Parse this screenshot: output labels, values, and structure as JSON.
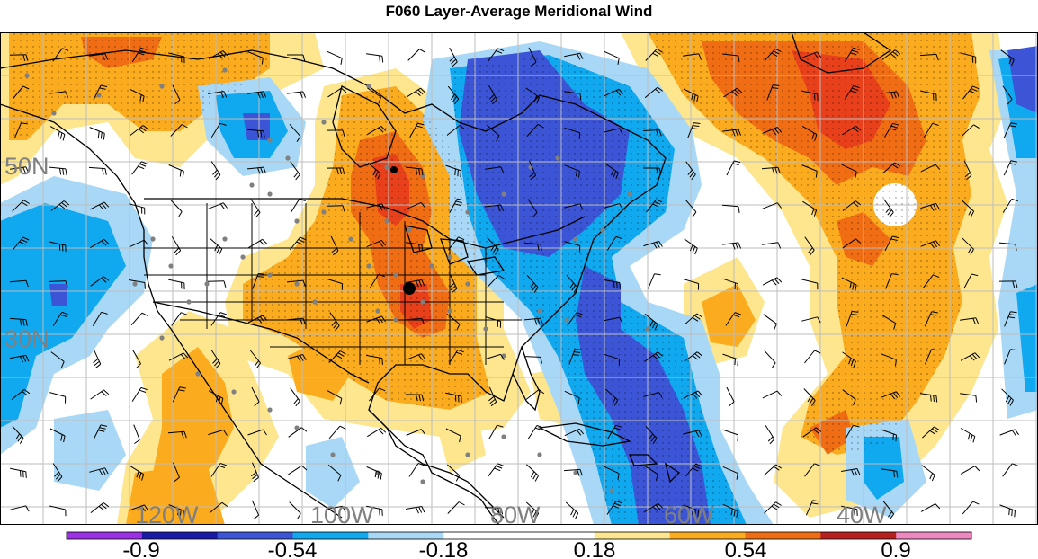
{
  "title": "F060 Layer-Average Meridional Wind",
  "colors": {
    "v_neg_090": "#9b30e6",
    "v_neg_072": "#1a1aa8",
    "v_neg_054": "#3c55d6",
    "v_neg_036": "#10a8ee",
    "v_neg_018": "#a8d8f6",
    "v_0": "#ffffff",
    "v_pos_018": "#fde68e",
    "v_pos_036": "#fbab1e",
    "v_pos_054": "#f06d14",
    "v_pos_072": "#e8401a",
    "v_pos_090": "#b8201e",
    "v_pos_max": "#f088c0",
    "coast": "#000000",
    "grid": "#bdbdbd",
    "station": "#808080"
  },
  "lon_labels": [
    "120W",
    "100W",
    "80W",
    "60W",
    "40W"
  ],
  "lat_labels": [
    "50N",
    "30N"
  ],
  "colorbar": {
    "labels": [
      "-0.9",
      "-0.54",
      "-0.18",
      "0.18",
      "0.54",
      "0.9"
    ],
    "bins": [
      "#9b30e6",
      "#1a1aa8",
      "#3c55d6",
      "#10a8ee",
      "#a8d8f6",
      "#ffffff",
      "#ffffff",
      "#fde68e",
      "#fbab1e",
      "#f06d14",
      "#b8201e",
      "#f088c0"
    ]
  }
}
